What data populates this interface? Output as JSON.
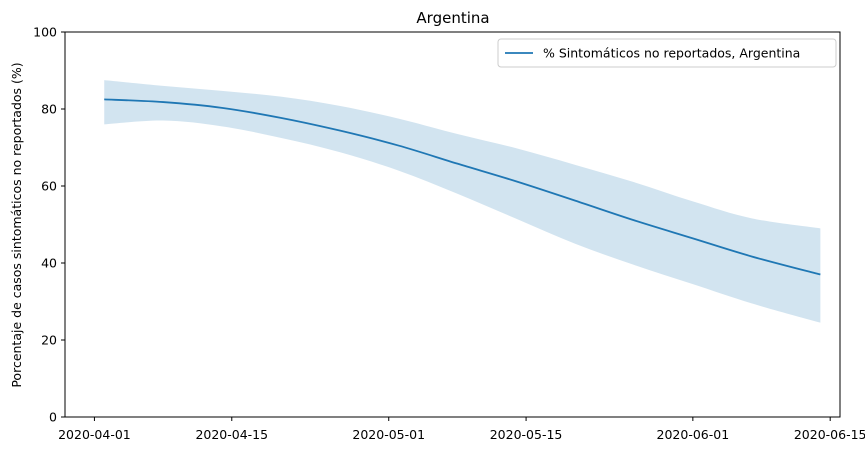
{
  "chart_data": {
    "type": "line",
    "title": "Argentina",
    "xlabel": "",
    "ylabel": "Porcentaje de casos sintomáticos no reportados (%)",
    "ylim": [
      0,
      100
    ],
    "xlim": [
      "2020-03-29",
      "2020-06-16"
    ],
    "yticks": [
      0,
      20,
      40,
      60,
      80,
      100
    ],
    "xticks": [
      "2020-04-01",
      "2020-04-15",
      "2020-05-01",
      "2020-05-15",
      "2020-06-01",
      "2020-06-15"
    ],
    "grid": false,
    "legend_position": "top-right",
    "series": [
      {
        "name": "% Sintomáticos no reportados, Argentina",
        "color": "#1f77b4",
        "band_color": "#1f77b4",
        "x": [
          "2020-04-02",
          "2020-04-08",
          "2020-04-14",
          "2020-04-20",
          "2020-04-26",
          "2020-05-02",
          "2020-05-08",
          "2020-05-14",
          "2020-05-20",
          "2020-05-26",
          "2020-06-01",
          "2020-06-07",
          "2020-06-14"
        ],
        "y": [
          82.5,
          81.8,
          80.3,
          77.7,
          74.4,
          70.5,
          65.8,
          61.2,
          56.2,
          51.1,
          46.4,
          41.7,
          37.0
        ],
        "lower": [
          76.0,
          77.0,
          75.5,
          72.5,
          68.8,
          64.0,
          58.0,
          51.5,
          45.0,
          39.5,
          34.5,
          29.5,
          24.5
        ],
        "upper": [
          87.5,
          86.0,
          84.7,
          83.2,
          80.8,
          77.5,
          73.5,
          69.8,
          65.5,
          61.0,
          56.0,
          51.6,
          49.0
        ]
      }
    ]
  }
}
